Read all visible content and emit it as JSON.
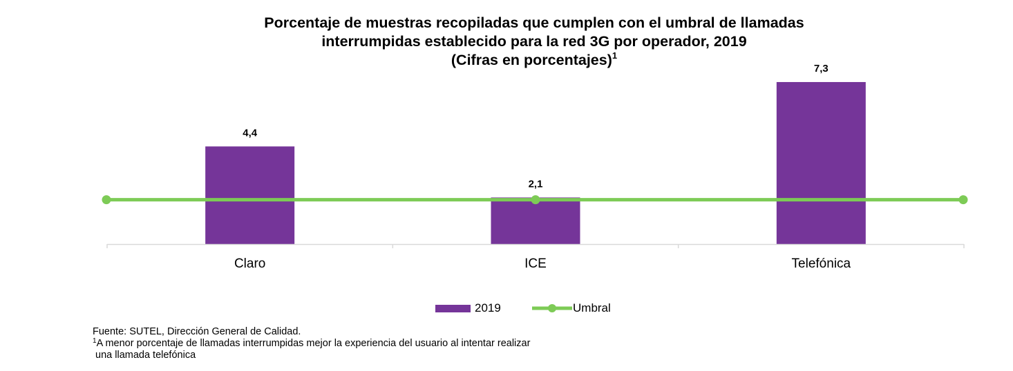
{
  "chart_data": {
    "type": "bar",
    "title_lines": [
      "Porcentaje de muestras recopiladas que cumplen con el umbral de llamadas",
      "interrumpidas establecido para la red 3G por operador, 2019",
      "(Cifras en porcentajes)"
    ],
    "title_superscript": "1",
    "categories": [
      "Claro",
      "ICE",
      "Telefónica"
    ],
    "series": [
      {
        "name": "2019",
        "kind": "bar",
        "color": "#753599",
        "values": [
          4.4,
          2.1,
          7.3
        ],
        "labels": [
          "4,4",
          "2,1",
          "7,3"
        ]
      },
      {
        "name": "Umbral",
        "kind": "line",
        "color": "#7dcb56",
        "value": 2.0
      }
    ],
    "ylim": [
      0,
      8.2
    ],
    "grid": false,
    "legend": "bottom"
  },
  "footer": {
    "source": "Fuente: SUTEL, Dirección General de Calidad.",
    "note_marker": "1",
    "note_line1": "A menor porcentaje de llamadas interrumpidas mejor la experiencia del usuario al intentar realizar",
    "note_line2": " una llamada telefónica"
  }
}
